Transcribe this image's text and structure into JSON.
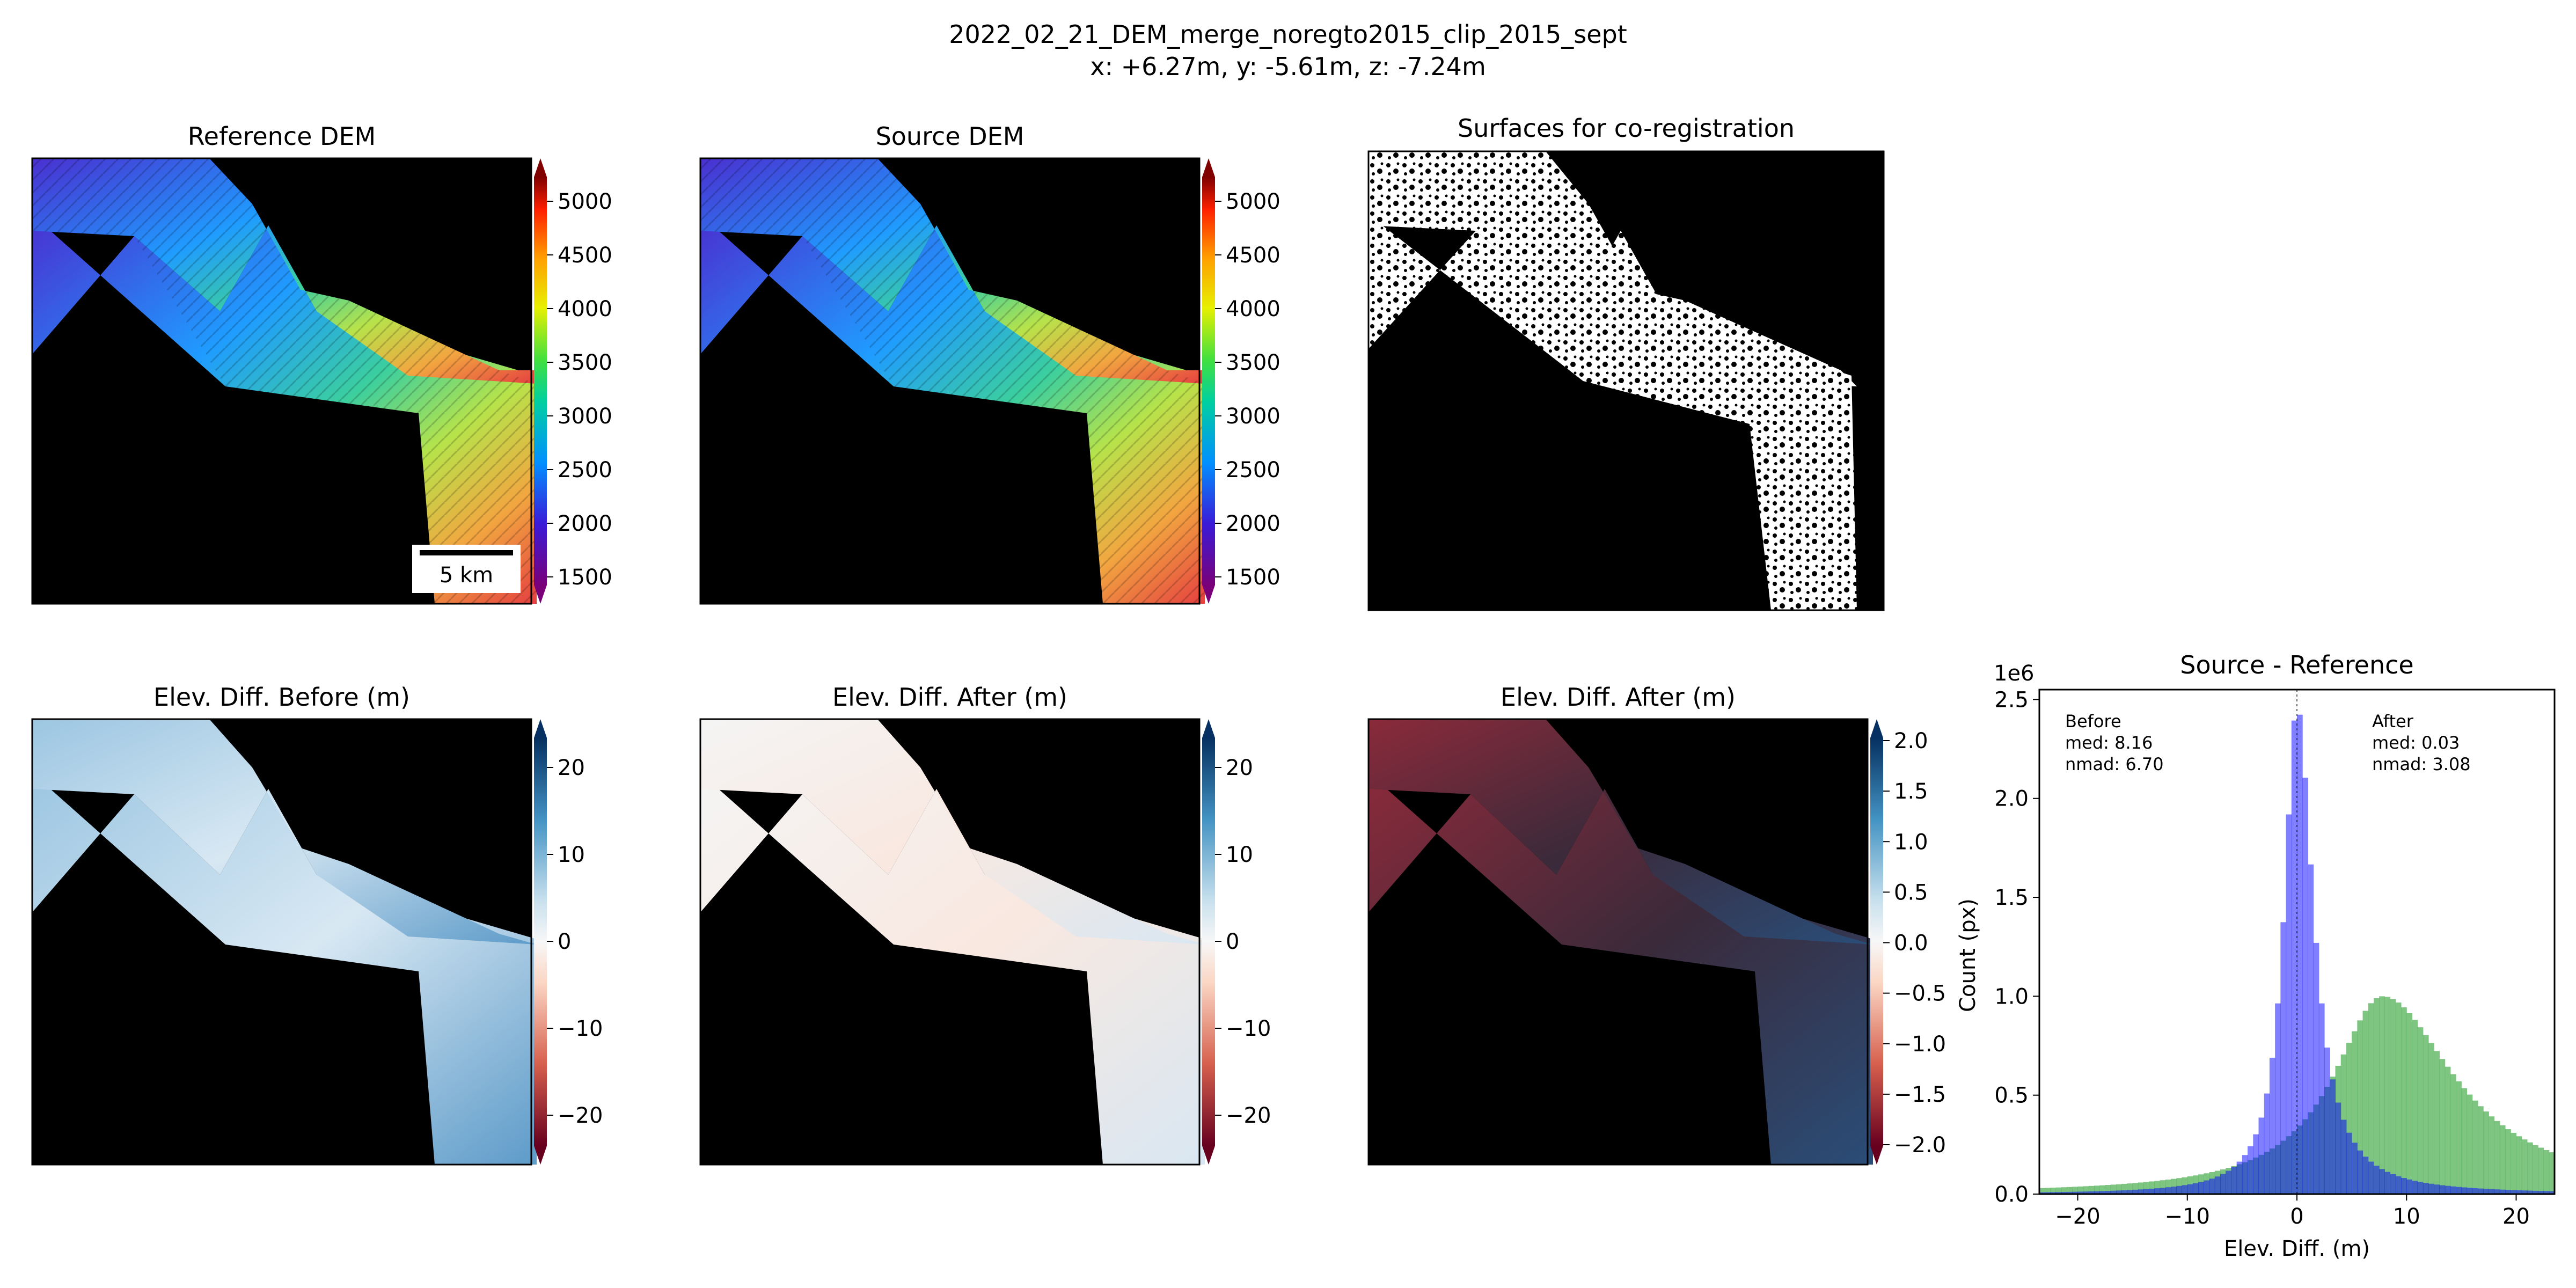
{
  "figure": {
    "title_line1": "2022_02_21_DEM_merge_noregto2015_clip_2015_sept",
    "title_line2": "x: +6.27m, y: -5.61m, z: -7.24m"
  },
  "panels": {
    "ref": {
      "title": "Reference DEM",
      "scalebar_label": "5 km"
    },
    "src": {
      "title": "Source DEM"
    },
    "surf": {
      "title": "Surfaces for co-registration"
    },
    "before": {
      "title": "Elev. Diff. Before (m)"
    },
    "after": {
      "title": "Elev. Diff. After (m)"
    },
    "after2": {
      "title": "Elev. Diff. After (m)"
    }
  },
  "colorbars": {
    "elevation": {
      "colormap": "rainbow",
      "ticks": [
        "5000",
        "4500",
        "4000",
        "3500",
        "3000",
        "2500",
        "2000",
        "1500"
      ]
    },
    "diff": {
      "colormap": "RdBu",
      "ticks": [
        "20",
        "10",
        "0",
        "−10",
        "−20"
      ]
    },
    "diff_small": {
      "colormap": "RdBu",
      "ticks": [
        "2.0",
        "1.5",
        "1.0",
        "0.5",
        "0.0",
        "−0.5",
        "−1.0",
        "−1.5",
        "−2.0"
      ]
    }
  },
  "chart_data": {
    "type": "bar",
    "title": "Source - Reference",
    "xlabel": "Elev. Diff. (m)",
    "ylabel": "Count (px)",
    "y_scale_label": "1e6",
    "xlim": [
      -23.5,
      23.5
    ],
    "ylim": [
      0,
      2.55
    ],
    "x_ticks": [
      "−20",
      "−10",
      "0",
      "10",
      "20"
    ],
    "y_ticks": [
      "0.0",
      "0.5",
      "1.0",
      "1.5",
      "2.0",
      "2.5"
    ],
    "annotations": {
      "before": {
        "line1": "Before",
        "line2": "med: 8.16",
        "line3": "nmad: 6.70"
      },
      "after": {
        "line1": "After",
        "line2": "med: 0.03",
        "line3": "nmad: 3.08"
      }
    },
    "series": [
      {
        "label_key": "before",
        "color": "#4CAF50",
        "alpha": 0.72,
        "shape": "asymmetric-peak",
        "peak_x": 7.8,
        "peak_y": 1.0,
        "left_width": 5.5,
        "right_width": 8.0
      },
      {
        "label_key": "after",
        "color": "#0000FF",
        "alpha": 0.5,
        "shape": "asymmetric-peak",
        "peak_x": 0.0,
        "peak_y": 2.47,
        "left_width": 1.4,
        "right_width": 1.8
      }
    ]
  }
}
